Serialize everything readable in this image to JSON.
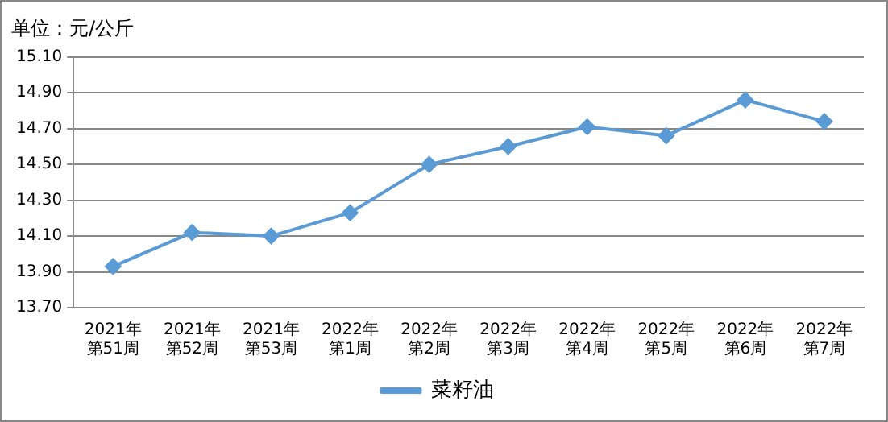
{
  "chart_data": {
    "type": "line",
    "title": "单位：元/公斤",
    "categories": [
      "2021年第51周",
      "2021年第52周",
      "2021年第53周",
      "2022年第1周",
      "2022年第2周",
      "2022年第3周",
      "2022年第4周",
      "2022年第5周",
      "2022年第6周",
      "2022年第7周"
    ],
    "series": [
      {
        "name": "菜籽油",
        "color": "#5b9bd5",
        "values": [
          13.93,
          14.12,
          14.1,
          14.23,
          14.5,
          14.6,
          14.71,
          14.66,
          14.86,
          14.74
        ]
      }
    ],
    "ylim": [
      13.7,
      15.1
    ],
    "yticks": [
      {
        "value": 13.7,
        "label": "13.70"
      },
      {
        "value": 13.9,
        "label": "13.90"
      },
      {
        "value": 14.1,
        "label": "14.10"
      },
      {
        "value": 14.3,
        "label": "14.30"
      },
      {
        "value": 14.5,
        "label": "14.50"
      },
      {
        "value": 14.7,
        "label": "14.70"
      },
      {
        "value": 14.9,
        "label": "14.90"
      },
      {
        "value": 15.1,
        "label": "15.10"
      }
    ],
    "grid": "y",
    "legend": "bottom",
    "marker": "diamond",
    "line_style": "solid"
  }
}
